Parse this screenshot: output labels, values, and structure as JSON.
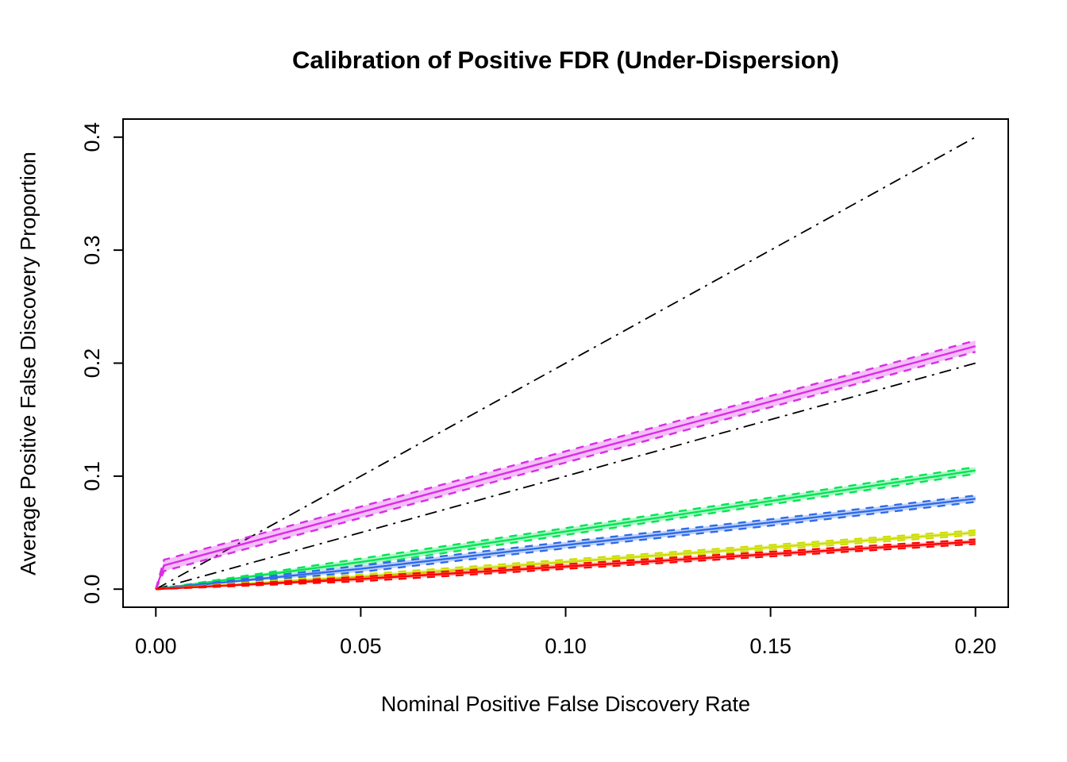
{
  "title": "Calibration of Positive FDR (Under-Dispersion)",
  "chart_data": {
    "type": "line",
    "title": "Calibration of Positive FDR (Under-Dispersion)",
    "xlabel": "Nominal Positive False Discovery Rate",
    "ylabel": "Average Positive False Discovery Proportion",
    "xlim": [
      0,
      0.2
    ],
    "ylim": [
      0,
      0.4
    ],
    "grid": false,
    "legend": "none",
    "x_ticks": [
      {
        "value": 0.0,
        "label": "0.00"
      },
      {
        "value": 0.05,
        "label": "0.05"
      },
      {
        "value": 0.1,
        "label": "0.10"
      },
      {
        "value": 0.15,
        "label": "0.15"
      },
      {
        "value": 0.2,
        "label": "0.20"
      }
    ],
    "y_ticks": [
      {
        "value": 0.0,
        "label": "0.0"
      },
      {
        "value": 0.1,
        "label": "0.1"
      },
      {
        "value": 0.2,
        "label": "0.2"
      },
      {
        "value": 0.3,
        "label": "0.3"
      },
      {
        "value": 0.4,
        "label": "0.4"
      }
    ],
    "reference_lines": [
      {
        "name": "slope-2-reference",
        "color": "#000000",
        "style": "dashdot",
        "x": [
          0,
          0.2
        ],
        "y": [
          0,
          0.4
        ]
      },
      {
        "name": "identity-reference",
        "color": "#000000",
        "style": "dashdot",
        "x": [
          0,
          0.2
        ],
        "y": [
          0,
          0.2
        ]
      }
    ],
    "series": [
      {
        "name": "magenta-method",
        "color": "#DB2CE8",
        "band_halfwidth": 0.005,
        "x": [
          0,
          0.002,
          0.05,
          0.1,
          0.15,
          0.2
        ],
        "y": [
          0,
          0.021,
          0.068,
          0.117,
          0.166,
          0.215
        ]
      },
      {
        "name": "green-method",
        "color": "#00E553",
        "band_halfwidth": 0.003,
        "x": [
          0,
          0.05,
          0.1,
          0.15,
          0.2
        ],
        "y": [
          0,
          0.024,
          0.051,
          0.078,
          0.105
        ]
      },
      {
        "name": "blue-method",
        "color": "#2F6BE8",
        "band_halfwidth": 0.0028,
        "x": [
          0,
          0.05,
          0.1,
          0.15,
          0.2
        ],
        "y": [
          0,
          0.018,
          0.039,
          0.059,
          0.08
        ]
      },
      {
        "name": "yellowgreen-method",
        "color": "#CCDD00",
        "band_halfwidth": 0.002,
        "x": [
          0,
          0.05,
          0.1,
          0.15,
          0.2
        ],
        "y": [
          0,
          0.011,
          0.024,
          0.037,
          0.05
        ]
      },
      {
        "name": "red-method",
        "color": "#FF0000",
        "band_halfwidth": 0.002,
        "x": [
          0,
          0.05,
          0.1,
          0.15,
          0.2
        ],
        "y": [
          0,
          0.009,
          0.02,
          0.031,
          0.042
        ]
      }
    ]
  }
}
